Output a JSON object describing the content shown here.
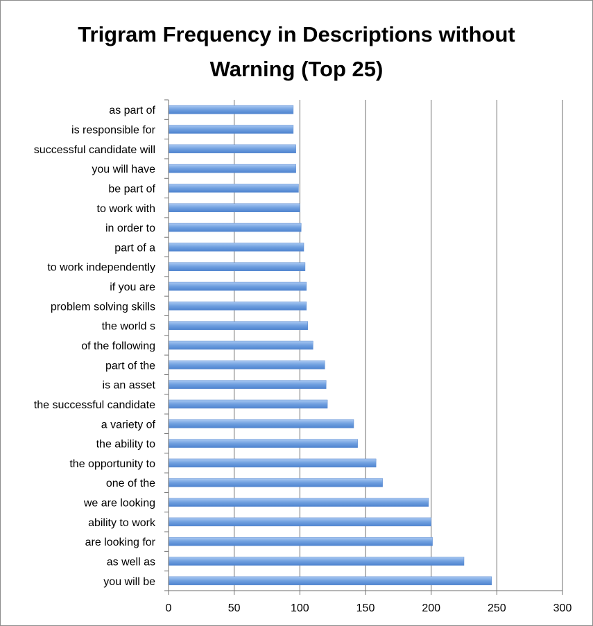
{
  "chart_data": {
    "type": "bar",
    "orientation": "horizontal",
    "title": "Trigram Frequency in Descriptions without Warning (Top 25)",
    "title_lines": [
      "Trigram Frequency in Descriptions without",
      "Warning (Top 25)"
    ],
    "xlabel": "",
    "ylabel": "",
    "xlim": [
      0,
      300
    ],
    "x_ticks": [
      0,
      50,
      100,
      150,
      200,
      250,
      300
    ],
    "grid": "vertical",
    "bar_color": "#6f9fdf",
    "categories": [
      "as part of",
      "is responsible for",
      "successful candidate will",
      "you will have",
      "be part of",
      "to work with",
      "in order to",
      "part of a",
      "to work independently",
      "if you are",
      "problem solving skills",
      "the world s",
      "of the following",
      "part of the",
      "is an asset",
      "the successful candidate",
      "a variety of",
      "the ability to",
      "the opportunity to",
      "one of the",
      "we are looking",
      "ability to work",
      "are looking for",
      "as well as",
      "you will be"
    ],
    "values": [
      95,
      95,
      97,
      97,
      99,
      100,
      101,
      103,
      104,
      105,
      105,
      106,
      110,
      119,
      120,
      121,
      141,
      144,
      158,
      163,
      198,
      200,
      201,
      225,
      246
    ]
  }
}
